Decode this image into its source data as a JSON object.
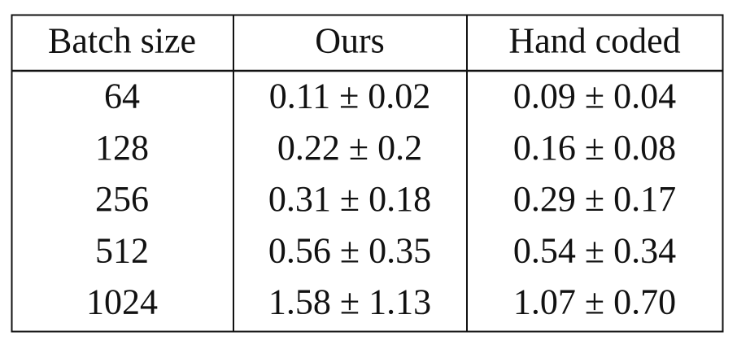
{
  "table": {
    "header": [
      "Batch size",
      "Ours",
      "Hand coded"
    ],
    "rows": [
      [
        "64",
        "0.11 ± 0.02",
        "0.09 ± 0.04"
      ],
      [
        "128",
        "0.22 ± 0.2",
        "0.16 ± 0.08"
      ],
      [
        "256",
        "0.31 ± 0.18",
        "0.29 ± 0.17"
      ],
      [
        "512",
        "0.56 ± 0.35",
        "0.54 ± 0.34"
      ],
      [
        "1024",
        "1.58 ± 1.13",
        "1.07 ± 0.70"
      ]
    ]
  }
}
